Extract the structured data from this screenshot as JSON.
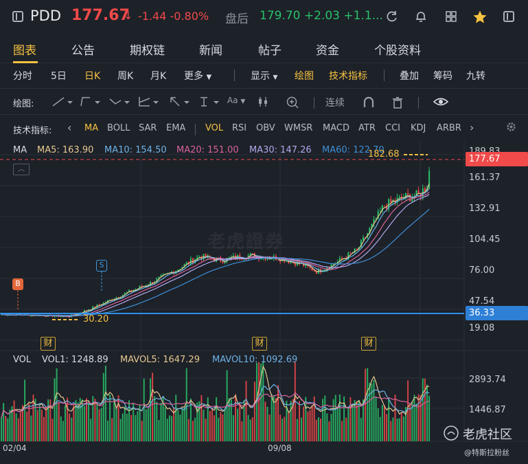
{
  "header": {
    "symbol": "PDD",
    "price": "177.67",
    "price_arrow": "↓",
    "change": "-1.44 -0.80%",
    "after_hours_label": "盘后",
    "after_hours_value": "179.70 +2.03 +1.1...",
    "icons": [
      "sidebar-toggle-icon",
      "refresh-icon",
      "bell-icon",
      "grid-icon",
      "star-icon",
      "panel-icon"
    ],
    "colors": {
      "down": "#f04a4a",
      "up": "#28c26a",
      "accent": "#f6c242"
    }
  },
  "tabs": [
    "图表",
    "公告",
    "期权链",
    "新闻",
    "帖子",
    "资金",
    "个股资料"
  ],
  "periods": {
    "items": [
      "分时",
      "5日",
      "日K",
      "周K",
      "月K",
      "更多"
    ],
    "active": "日K",
    "display": "显示",
    "draw": "绘图",
    "tech": "技术指标",
    "right": [
      "叠加",
      "筹码",
      "九转"
    ]
  },
  "drawbar": {
    "label": "绘图:",
    "continuous": "连续",
    "text_tool": "Aa"
  },
  "indicators": {
    "label": "技术指标:",
    "main": [
      "MA",
      "BOLL",
      "SAR",
      "EMA"
    ],
    "sub": [
      "VOL",
      "RSI",
      "OBV",
      "WMSR",
      "MACD",
      "ATR",
      "CCI",
      "KDJ",
      "ARBR"
    ],
    "active_main": "MA",
    "active_sub": "VOL"
  },
  "ma": {
    "label": "MA",
    "ma5": "MA5: 163.90",
    "ma10": "MA10: 154.50",
    "ma20": "MA20: 151.00",
    "ma30": "MA30: 147.26",
    "ma60": "MA60: 122.70",
    "colors": {
      "ma5": "#e6c892",
      "ma10": "#6fb3e8",
      "ma20": "#d8639c",
      "ma30": "#b2a9ef",
      "ma60": "#3f8fd8"
    }
  },
  "price_axis": {
    "ticks": [
      "189.83",
      "161.37",
      "132.91",
      "104.45",
      "76.00",
      "47.54",
      "19.08"
    ],
    "current": "177.67",
    "line_level": "36.33",
    "high_label": "182.68",
    "low_label": "30.20"
  },
  "markers": {
    "buy": "B",
    "sell": "S",
    "earnings": "财"
  },
  "volume": {
    "label": "VOL",
    "vol1": "VOL1: 1248.89",
    "mavol5": "MAVOL5: 1647.29",
    "mavol10": "MAVOL10: 1092.69",
    "ticks": [
      "2893.74",
      "1446.87"
    ]
  },
  "x_axis": [
    "02/04",
    "09/08"
  ],
  "watermark": {
    "main": "老虎證券",
    "community": "老虎社区",
    "user": "@特斯拉粉丝"
  }
}
